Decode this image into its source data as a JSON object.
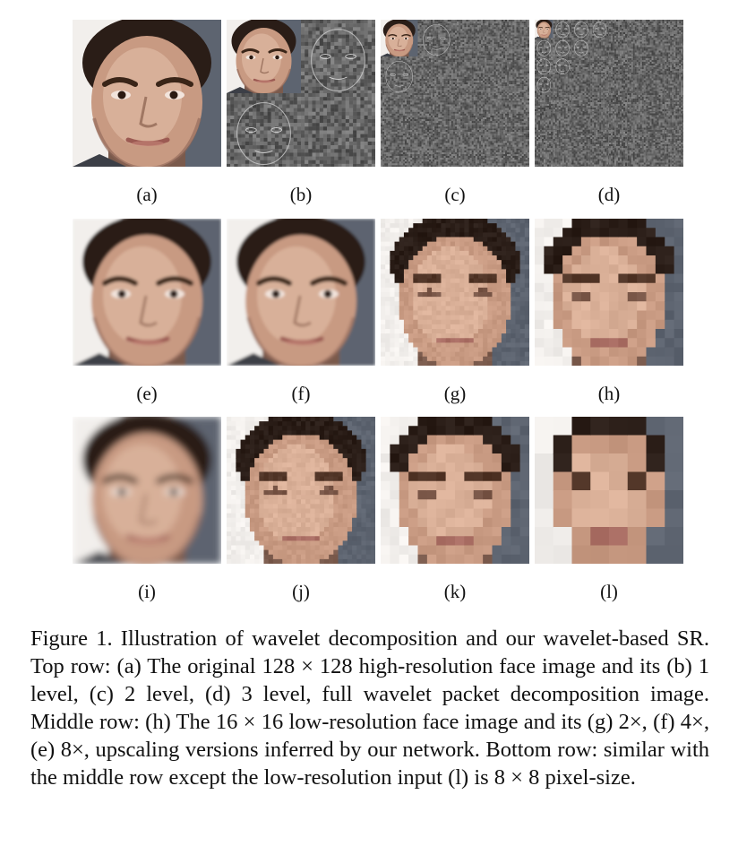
{
  "figure": {
    "panels": [
      {
        "id": "a",
        "label": "(a)",
        "kind": "original HR face"
      },
      {
        "id": "b",
        "label": "(b)",
        "kind": "1 level wavelet packet decomposition"
      },
      {
        "id": "c",
        "label": "(c)",
        "kind": "2 level wavelet packet decomposition"
      },
      {
        "id": "d",
        "label": "(d)",
        "kind": "3 level wavelet packet decomposition"
      },
      {
        "id": "e",
        "label": "(e)",
        "kind": "8x upscaled"
      },
      {
        "id": "f",
        "label": "(f)",
        "kind": "4x upscaled"
      },
      {
        "id": "g",
        "label": "(g)",
        "kind": "2x upscaled"
      },
      {
        "id": "h",
        "label": "(h)",
        "kind": "16x16 low-resolution input"
      },
      {
        "id": "i",
        "label": "(i)",
        "kind": "upscaled from 8x8"
      },
      {
        "id": "j",
        "label": "(j)",
        "kind": "upscaled from 8x8"
      },
      {
        "id": "k",
        "label": "(k)",
        "kind": "upscaled from 8x8"
      },
      {
        "id": "l",
        "label": "(l)",
        "kind": "8x8 low-resolution input"
      }
    ]
  },
  "caption": {
    "text": "Figure 1.  Illustration of wavelet decomposition and our wavelet-based SR. Top row: (a) The original 128 × 128 high-resolution face image and its (b) 1 level, (c) 2 level, (d) 3 level, full wavelet packet decomposition image. Middle row: (h) The 16 × 16 low-resolution face image and its (g) 2×, (f) 4×, (e) 8×, upscaling versions inferred by our network. Bottom row: similar with the middle row except the low-resolution input (l) is 8 × 8 pixel-size."
  },
  "colors": {
    "skin": "#c89a82",
    "skin_light": "#e6c2ad",
    "hair": "#2a1d17",
    "background_left": "#f2efec",
    "background_right": "#5d6470",
    "wavelet_gray": "#8a8a8a"
  }
}
